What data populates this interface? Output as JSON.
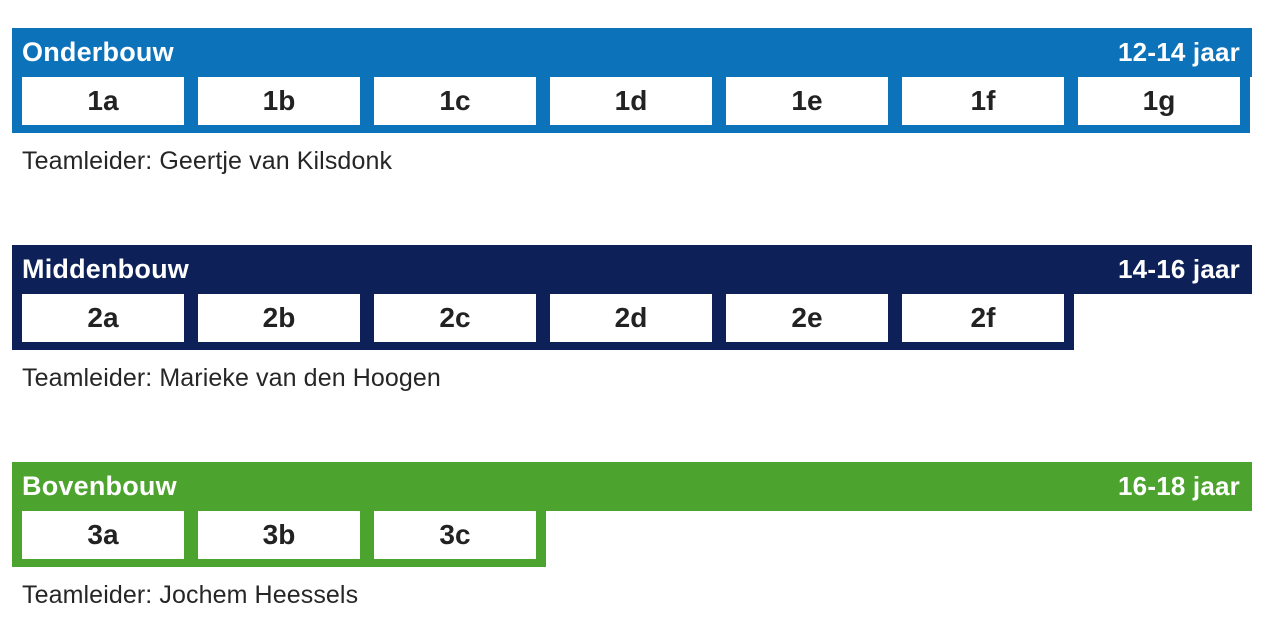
{
  "sections": [
    {
      "title": "Onderbouw",
      "age_range": "12-14 jaar",
      "color": "#0c72ba",
      "classes": [
        "1a",
        "1b",
        "1c",
        "1d",
        "1e",
        "1f",
        "1g"
      ],
      "teamleider": "Teamleider: Geertje van Kilsdonk"
    },
    {
      "title": "Middenbouw",
      "age_range": "14-16 jaar",
      "color": "#0d2158",
      "classes": [
        "2a",
        "2b",
        "2c",
        "2d",
        "2e",
        "2f"
      ],
      "teamleider": "Teamleider: Marieke van den Hoogen"
    },
    {
      "title": "Bovenbouw",
      "age_range": "16-18 jaar",
      "color": "#4ca42e",
      "classes": [
        "3a",
        "3b",
        "3c"
      ],
      "teamleider": "Teamleider: Jochem Heessels"
    }
  ]
}
